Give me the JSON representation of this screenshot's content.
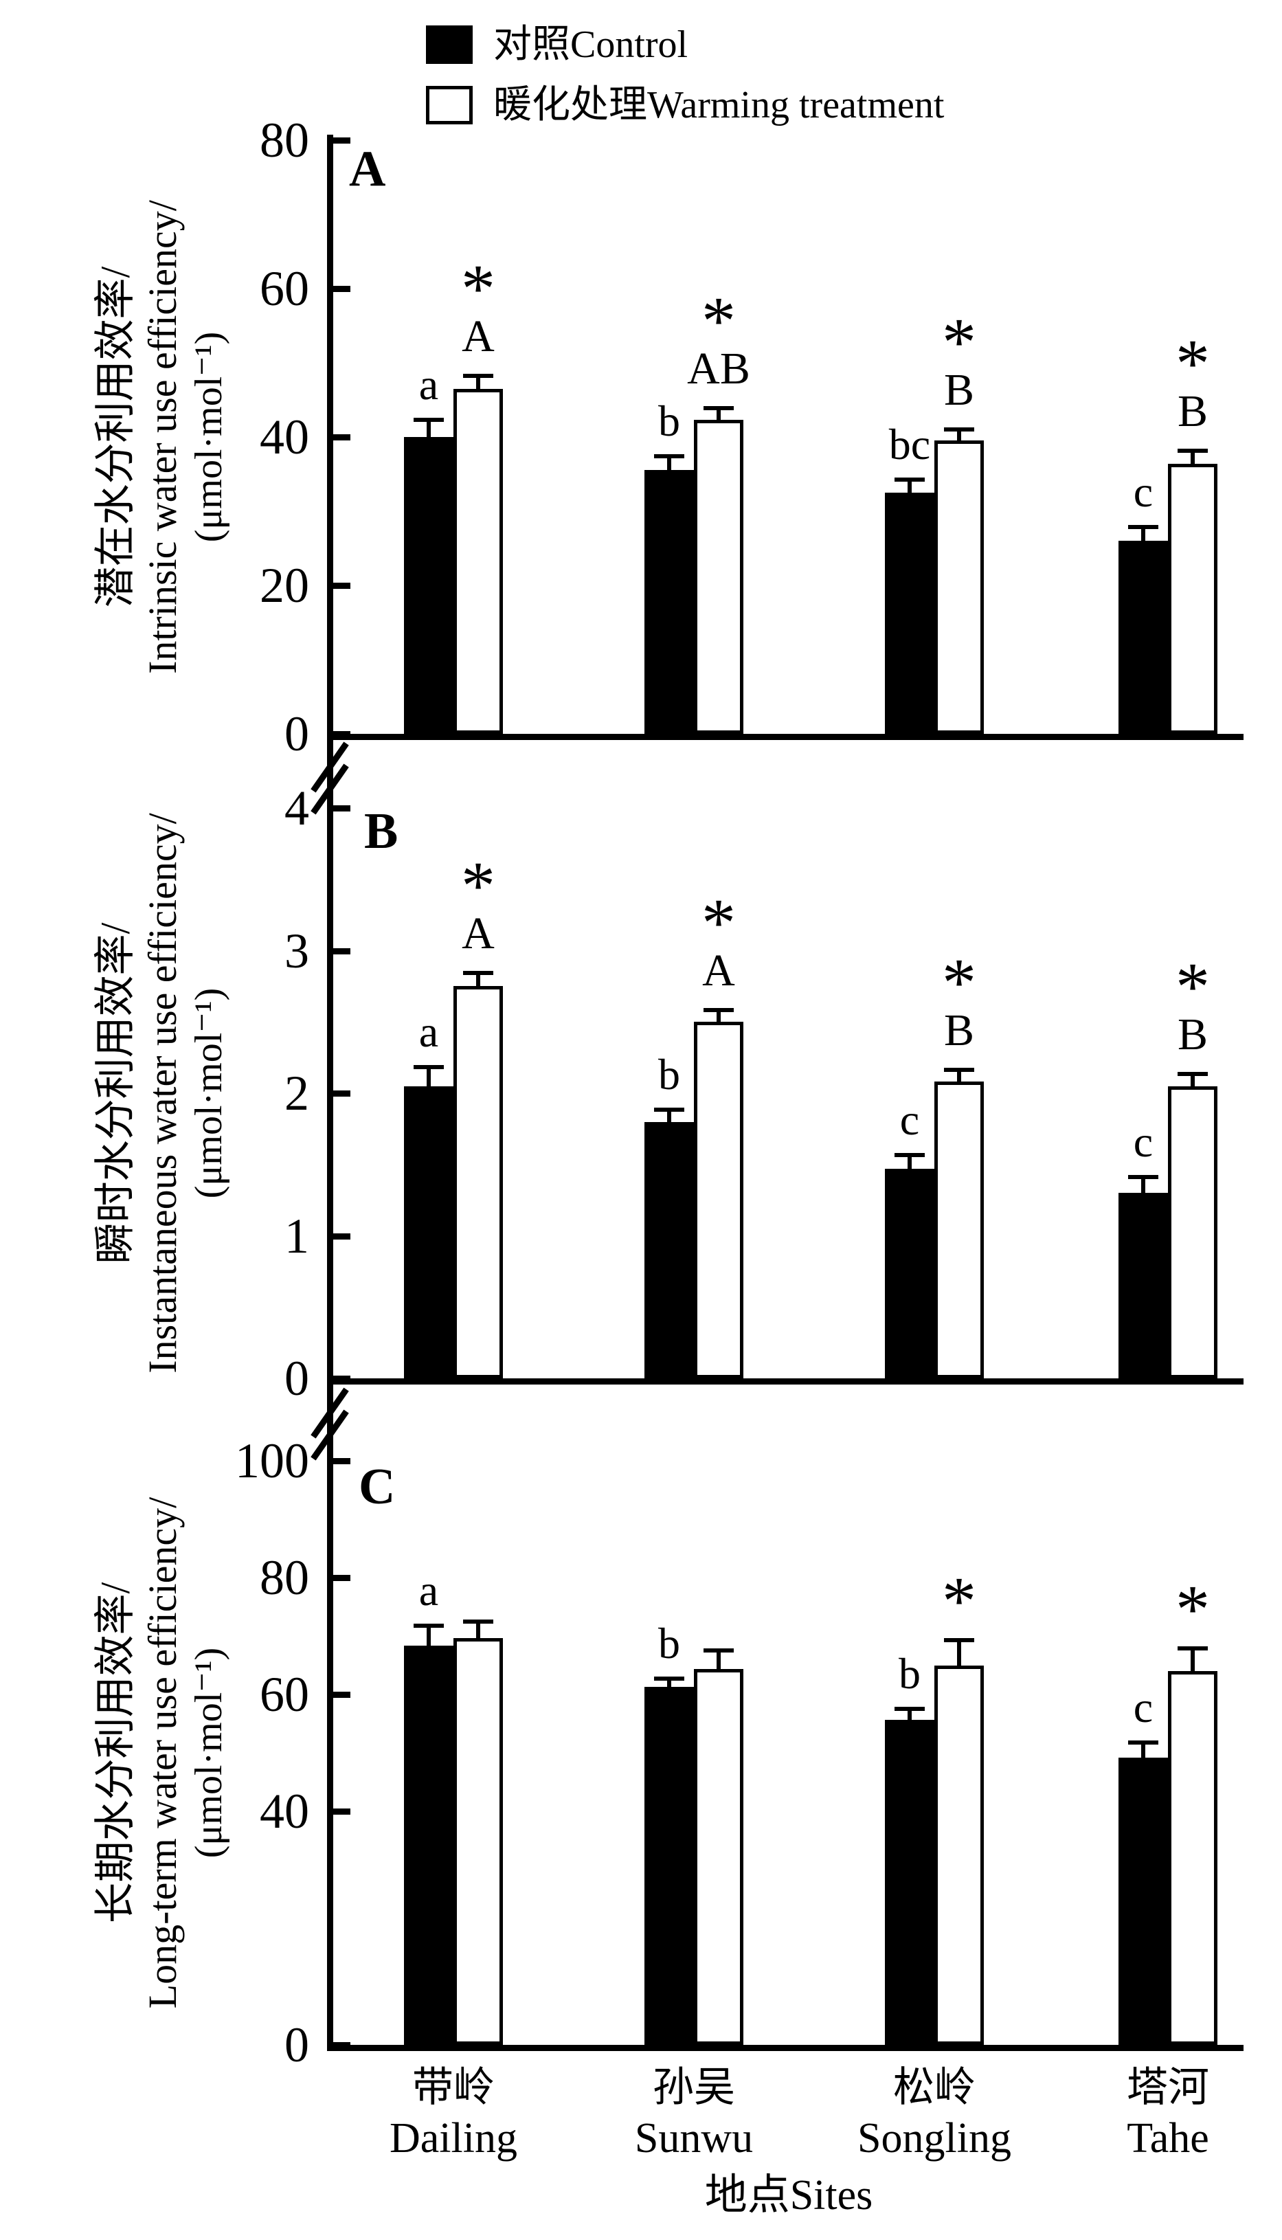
{
  "legend": {
    "items": [
      {
        "label": "对照Control",
        "swatch": "black"
      },
      {
        "label": "暖化处理Warming treatment",
        "swatch": "white"
      }
    ]
  },
  "colors": {
    "control": "#000000",
    "warming": "#ffffff",
    "ink": "#000000",
    "background": "#ffffff"
  },
  "xaxis": {
    "title": "地点Sites",
    "categories": [
      {
        "zh": "带岭",
        "en": "Dailing"
      },
      {
        "zh": "孙吴",
        "en": "Sunwu"
      },
      {
        "zh": "松岭",
        "en": "Songling"
      },
      {
        "zh": "塔河",
        "en": "Tahe"
      }
    ]
  },
  "chart_data": [
    {
      "type": "bar",
      "panel_label": "A",
      "title_zh": "潜在水分利用效率/",
      "title_en": "Intrinsic water use efficiency/",
      "unit": "(μmol·mol⁻¹)",
      "ylim": [
        0,
        80
      ],
      "yticks": [
        0,
        20,
        40,
        60,
        80
      ],
      "categories": [
        "带岭 Dailing",
        "孙吴 Sunwu",
        "松岭 Songling",
        "塔河 Tahe"
      ],
      "series": [
        {
          "name": "对照Control",
          "values": [
            40.0,
            35.6,
            32.5,
            26.0
          ],
          "errors": [
            2.0,
            1.5,
            1.5,
            1.6
          ],
          "letters": [
            "a",
            "b",
            "bc",
            "c"
          ],
          "asterisks": [
            false,
            false,
            false,
            false
          ]
        },
        {
          "name": "暖化处理Warming treatment",
          "values": [
            46.5,
            42.3,
            39.5,
            36.4
          ],
          "errors": [
            1.5,
            1.3,
            1.2,
            1.5
          ],
          "letters": [
            "A",
            "AB",
            "B",
            "B"
          ],
          "asterisks": [
            true,
            true,
            true,
            true
          ]
        }
      ]
    },
    {
      "type": "bar",
      "panel_label": "B",
      "title_zh": "瞬时水分利用效率/",
      "title_en": "Instantaneous water use efficiency/",
      "unit": "(μmol·mol⁻¹)",
      "ylim": [
        0,
        4
      ],
      "yticks": [
        0,
        1,
        2,
        3,
        4
      ],
      "categories": [
        "带岭 Dailing",
        "孙吴 Sunwu",
        "松岭 Songling",
        "塔河 Tahe"
      ],
      "series": [
        {
          "name": "对照Control",
          "values": [
            2.05,
            1.8,
            1.47,
            1.3
          ],
          "errors": [
            0.12,
            0.07,
            0.08,
            0.1
          ],
          "letters": [
            "a",
            "b",
            "c",
            "c"
          ],
          "asterisks": [
            false,
            false,
            false,
            false
          ]
        },
        {
          "name": "暖化处理Warming treatment",
          "values": [
            2.75,
            2.5,
            2.08,
            2.05
          ],
          "errors": [
            0.08,
            0.07,
            0.07,
            0.07
          ],
          "letters": [
            "A",
            "A",
            "B",
            "B"
          ],
          "asterisks": [
            true,
            true,
            true,
            true
          ]
        }
      ]
    },
    {
      "type": "bar",
      "panel_label": "C",
      "title_zh": "长期水分利用效率/",
      "title_en": "Long-term water use efficiency/",
      "unit": "(μmol·mol⁻¹)",
      "ylim": [
        0,
        100
      ],
      "yticks": [
        0,
        40,
        60,
        80,
        100
      ],
      "categories": [
        "带岭 Dailing",
        "孙吴 Sunwu",
        "松岭 Songling",
        "塔河 Tahe"
      ],
      "series": [
        {
          "name": "对照Control",
          "values": [
            68.4,
            61.3,
            55.6,
            49.2
          ],
          "errors": [
            3.0,
            1.0,
            1.6,
            2.2
          ],
          "letters": [
            "a",
            "b",
            "b",
            "c"
          ],
          "asterisks": [
            false,
            false,
            false,
            false
          ]
        },
        {
          "name": "暖化处理Warming treatment",
          "values": [
            69.6,
            64.4,
            65.0,
            64.0
          ],
          "errors": [
            2.5,
            2.8,
            4.0,
            3.5
          ],
          "letters": [
            "",
            "",
            "",
            ""
          ],
          "asterisks": [
            false,
            false,
            true,
            true
          ]
        }
      ]
    }
  ]
}
